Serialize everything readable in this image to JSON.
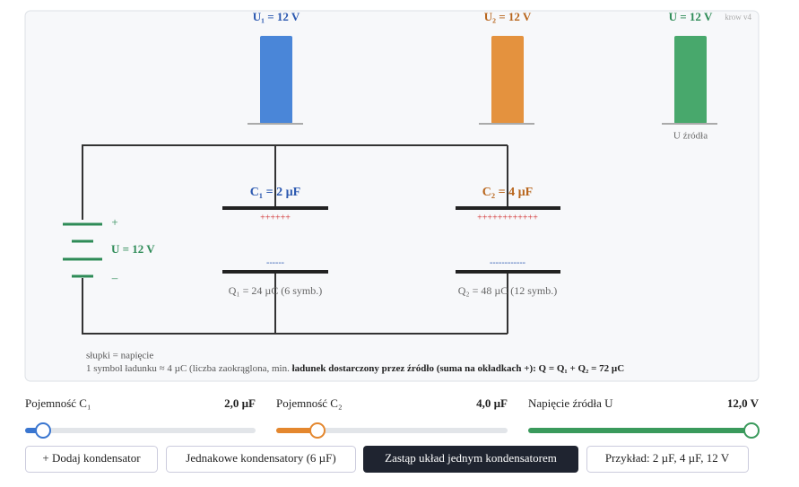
{
  "bars": [
    {
      "label": "U₁ = 12 V"
    },
    {
      "label": "U₂ = 12 V"
    },
    {
      "label": "U = 12 V",
      "caption": "U źródła"
    }
  ],
  "version": "krow v4",
  "source": {
    "plus": "+",
    "label": "U = 12 V",
    "minus": "–"
  },
  "capacitors": [
    {
      "label": "C₁ = 2 µF",
      "plus": "++++++",
      "minus": "------",
      "charge": "Q₁ = 24 µC (6 symb.)"
    },
    {
      "label": "C₂ = 4 µF",
      "plus": "++++++++++++",
      "minus": "------------",
      "charge": "Q₂ = 48 µC (12 symb.)"
    }
  ],
  "legend": {
    "line1": "słupki = napięcie",
    "line2": "1 symbol ładunku ≈ 4 µC (liczba zaokrąglona, min.",
    "line2_bold": "ładunek dostarczony przez źródło (suma na okładkach +): Q = Q₁ + Q₂ = 72 µC"
  },
  "sliders": [
    {
      "label": "Pojemność C₁",
      "value": "2,0 µF"
    },
    {
      "label": "Pojemność C₂",
      "value": "4,0 µF"
    },
    {
      "label": "Napięcie źródła U",
      "value": "12,0 V"
    }
  ],
  "buttons": [
    "+ Dodaj kondensator",
    "Jednakowe kondensatory (6 µF)",
    "Zastąp układ jednym kondensatorem",
    "Przykład: 2 µF, 4 µF, 12 V"
  ]
}
